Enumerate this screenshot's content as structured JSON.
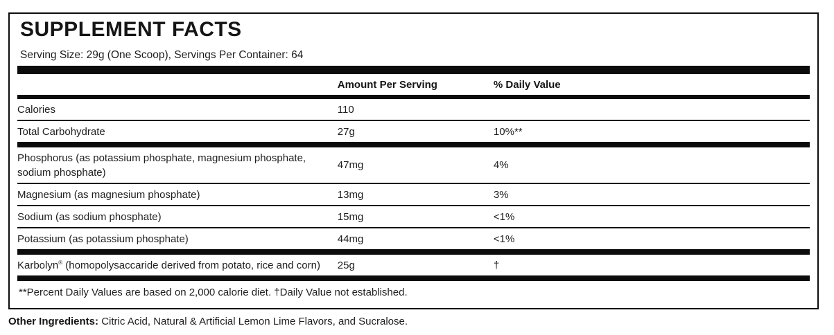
{
  "panel": {
    "title": "SUPPLEMENT FACTS",
    "serving_info": "Serving Size: 29g (One Scoop), Servings Per Container: 64",
    "header": {
      "nutrient_col": "",
      "amount_col": "Amount Per Serving",
      "dv_col": "% Daily Value"
    },
    "rows": [
      {
        "label": "Calories",
        "amount": "110",
        "dv": "",
        "divider_after": "thin"
      },
      {
        "label": "Total Carbohydrate",
        "amount": "27g",
        "dv": "10%**",
        "divider_after": "thick"
      },
      {
        "label": "Phosphorus (as potassium phosphate, magnesium phosphate, sodium phosphate)",
        "amount": "47mg",
        "dv": "4%",
        "divider_after": "thin"
      },
      {
        "label": "Magnesium (as magnesium phosphate)",
        "amount": "13mg",
        "dv": "3%",
        "divider_after": "thin"
      },
      {
        "label": "Sodium (as sodium phosphate)",
        "amount": "15mg",
        "dv": "<1%",
        "divider_after": "thin"
      },
      {
        "label": "Potassium (as potassium phosphate)",
        "amount": "44mg",
        "dv": "<1%",
        "divider_after": "thick"
      },
      {
        "label": "Karbolyn® (homopolysaccaride derived from potato, rice and corn)",
        "amount": "25g",
        "dv": "†",
        "divider_after": "thick"
      }
    ],
    "footnote": "**Percent Daily Values are based on 2,000 calorie diet. †Daily Value not established."
  },
  "other_ingredients": {
    "label": "Other Ingredients:",
    "text": "Citric Acid, Natural & Artificial Lemon Lime Flavors, and Sucralose."
  },
  "colors": {
    "text": "#1e1e1e",
    "rule": "#0c0c0c",
    "background": "#ffffff"
  }
}
